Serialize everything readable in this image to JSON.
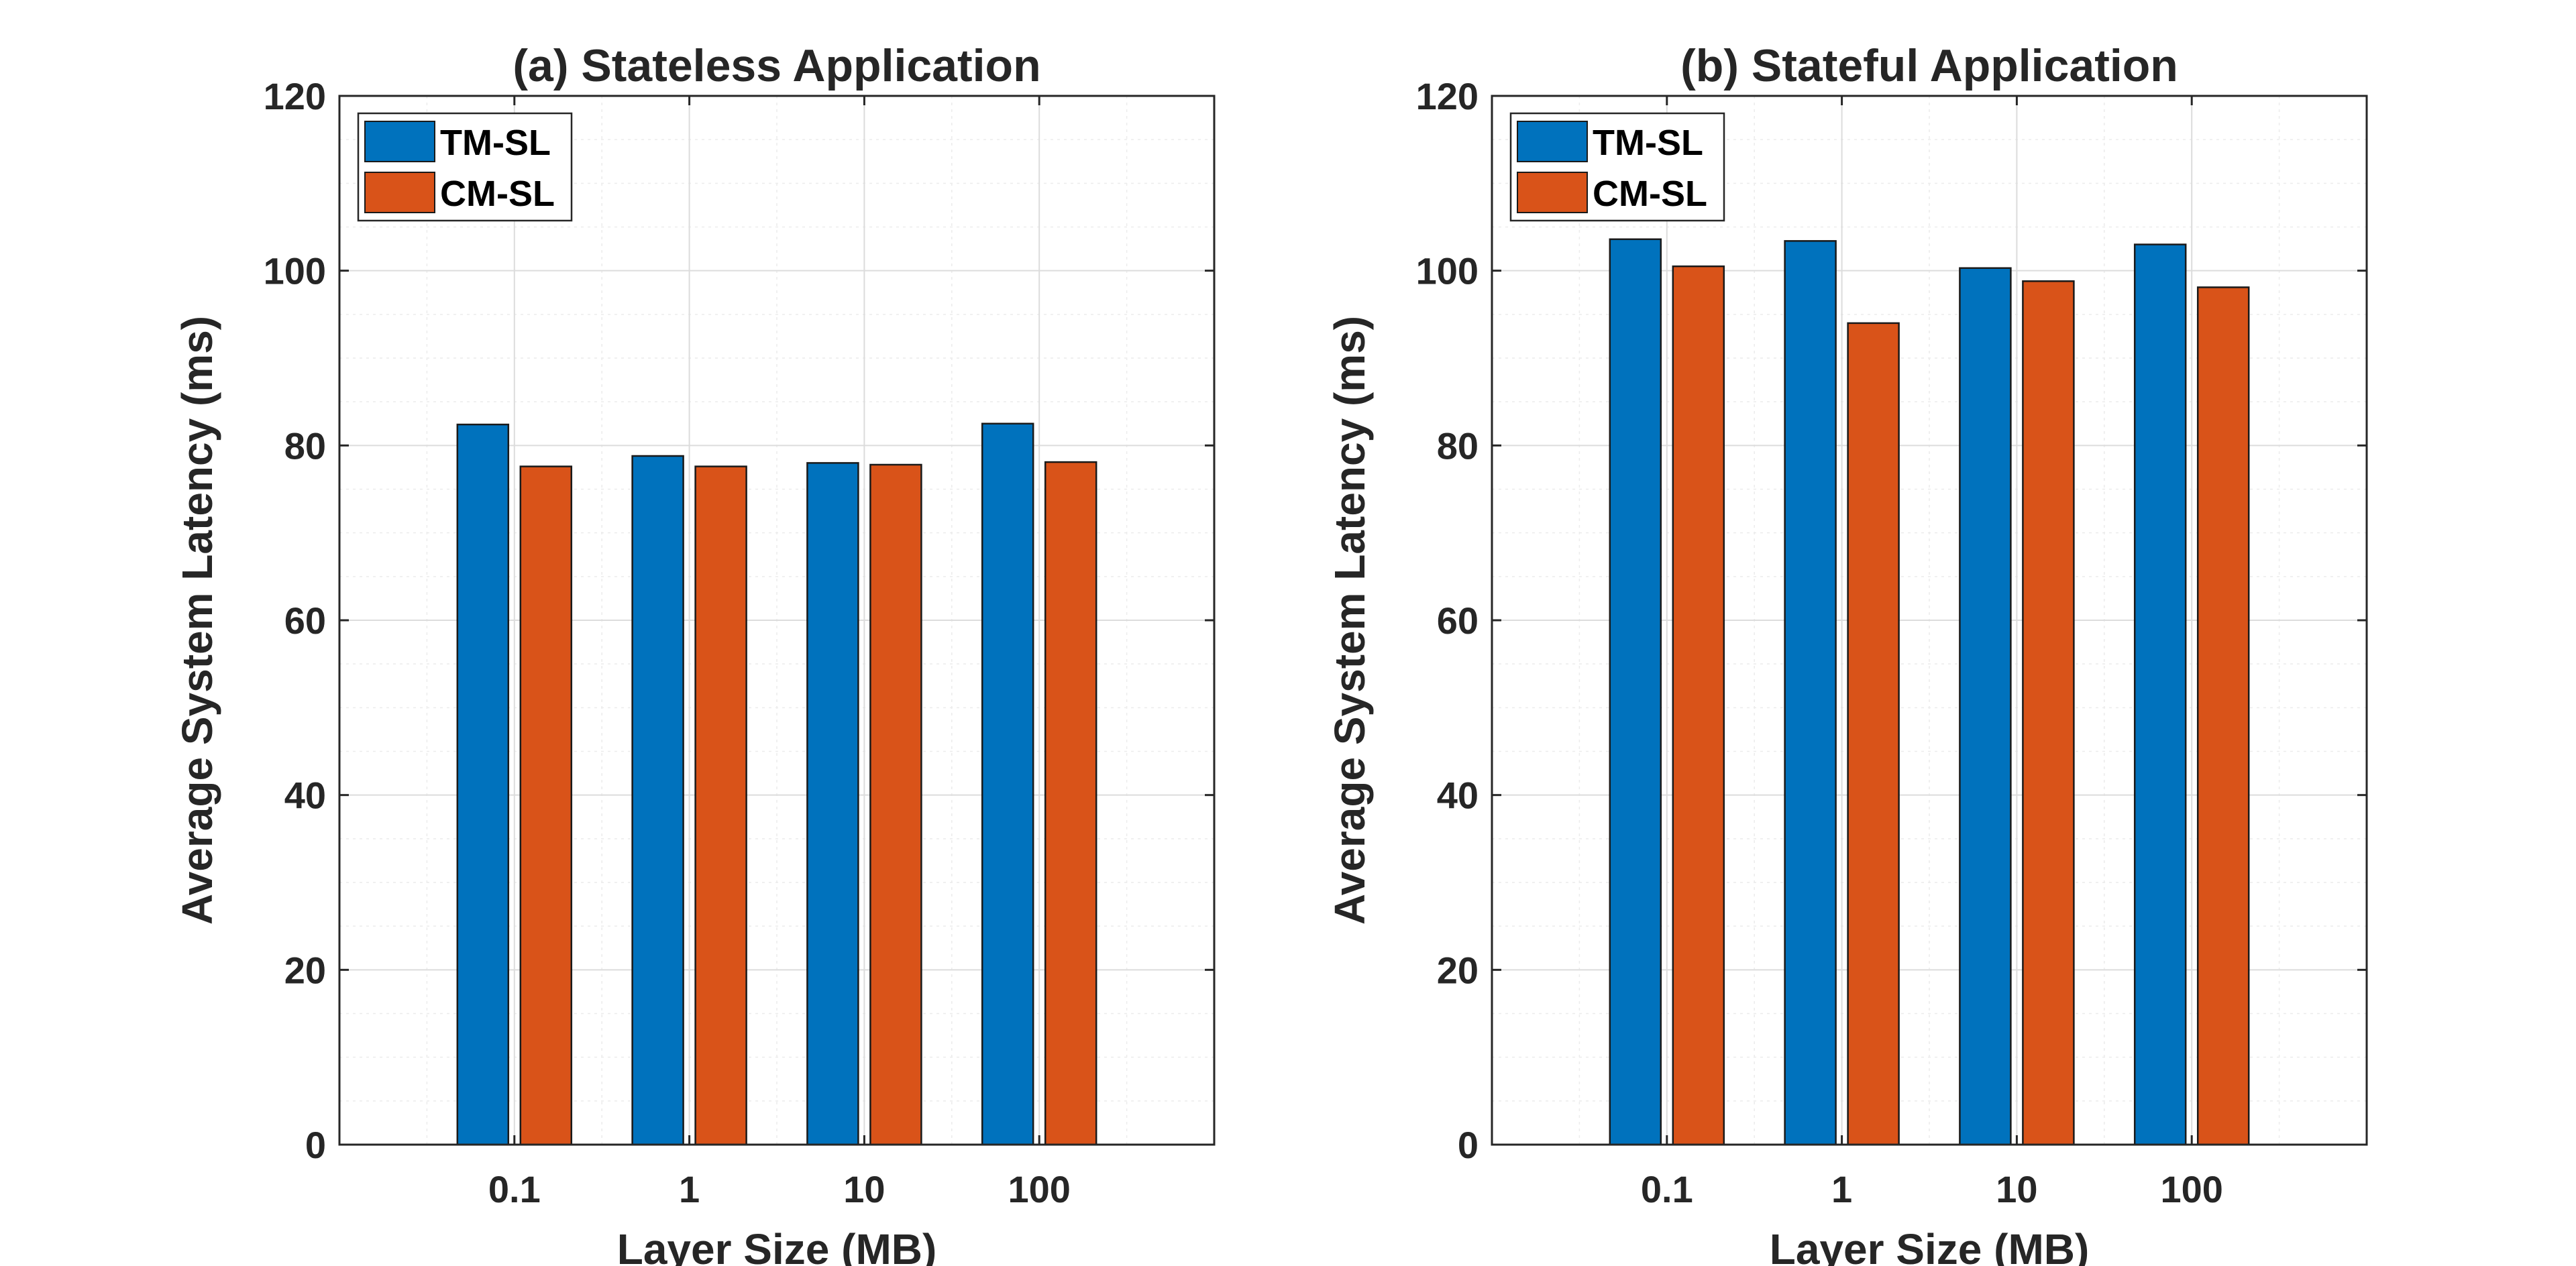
{
  "chart_data": [
    {
      "type": "bar",
      "title": "(a) Stateless Application",
      "xlabel": "Layer Size (MB)",
      "ylabel": "Average System Latency (ms)",
      "categories": [
        "0.1",
        "1",
        "10",
        "100"
      ],
      "ylim": [
        0,
        120
      ],
      "yticks": [
        0,
        20,
        40,
        60,
        80,
        100,
        120
      ],
      "grid": true,
      "legend_position": "top-left",
      "series": [
        {
          "name": "TM-SL",
          "color": "#0072BD",
          "values": [
            82.4,
            78.8,
            78.0,
            82.5
          ]
        },
        {
          "name": "CM-SL",
          "color": "#D95319",
          "values": [
            77.6,
            77.6,
            77.8,
            78.1
          ]
        }
      ]
    },
    {
      "type": "bar",
      "title": "(b) Stateful Application",
      "xlabel": "Layer Size (MB)",
      "ylabel": "Average System Latency (ms)",
      "categories": [
        "0.1",
        "1",
        "10",
        "100"
      ],
      "ylim": [
        0,
        120
      ],
      "yticks": [
        0,
        20,
        40,
        60,
        80,
        100,
        120
      ],
      "grid": true,
      "legend_position": "top-left",
      "series": [
        {
          "name": "TM-SL",
          "color": "#0072BD",
          "values": [
            103.6,
            103.4,
            100.3,
            103.0
          ]
        },
        {
          "name": "CM-SL",
          "color": "#D95319",
          "values": [
            100.5,
            94.0,
            98.8,
            98.1
          ]
        }
      ]
    }
  ]
}
